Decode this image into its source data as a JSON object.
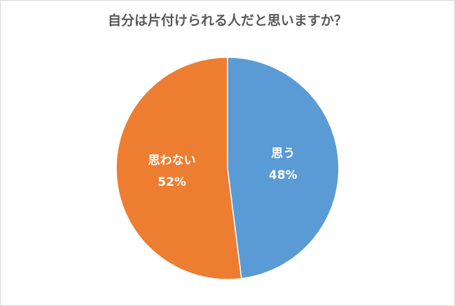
{
  "chart_data": {
    "type": "pie",
    "title": "自分は片付けられる人だと思いますか？",
    "categories": [
      "思う",
      "思わない"
    ],
    "values": [
      48,
      52
    ],
    "value_labels": [
      "48%",
      "52%"
    ],
    "colors": [
      "#5b9bd5",
      "#ed7d31"
    ]
  }
}
